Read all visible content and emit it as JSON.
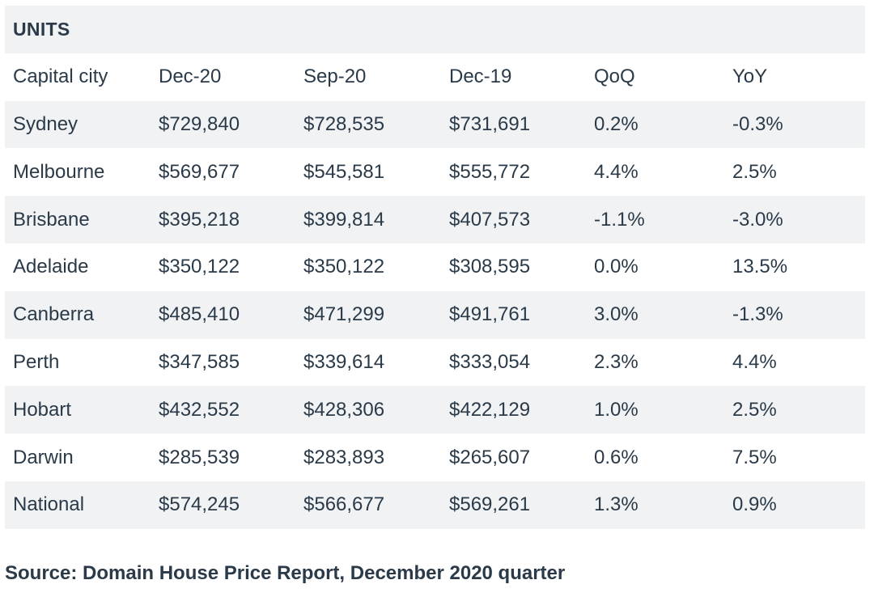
{
  "table": {
    "title": "UNITS",
    "columns": [
      "Capital city",
      "Dec-20",
      "Sep-20",
      "Dec-19",
      "QoQ",
      "YoY"
    ],
    "rows": [
      [
        "Sydney",
        "$729,840",
        "$728,535",
        "$731,691",
        "0.2%",
        "-0.3%"
      ],
      [
        "Melbourne",
        "$569,677",
        "$545,581",
        "$555,772",
        "4.4%",
        "2.5%"
      ],
      [
        "Brisbane",
        "$395,218",
        "$399,814",
        "$407,573",
        "-1.1%",
        "-3.0%"
      ],
      [
        "Adelaide",
        "$350,122",
        "$350,122",
        "$308,595",
        "0.0%",
        "13.5%"
      ],
      [
        "Canberra",
        "$485,410",
        "$471,299",
        "$491,761",
        "3.0%",
        "-1.3%"
      ],
      [
        "Perth",
        "$347,585",
        "$339,614",
        "$333,054",
        "2.3%",
        "4.4%"
      ],
      [
        "Hobart",
        "$432,552",
        "$428,306",
        "$422,129",
        "1.0%",
        "2.5%"
      ],
      [
        "Darwin",
        "$285,539",
        "$283,893",
        "$265,607",
        "0.6%",
        "7.5%"
      ],
      [
        "National",
        "$574,245",
        "$566,677",
        "$569,261",
        "1.3%",
        "0.9%"
      ]
    ]
  },
  "source": "Source: Domain House Price Report, December 2020 quarter",
  "colors": {
    "text": "#2b3a48",
    "row_shade": "#f0f2f4",
    "background": "#ffffff"
  }
}
